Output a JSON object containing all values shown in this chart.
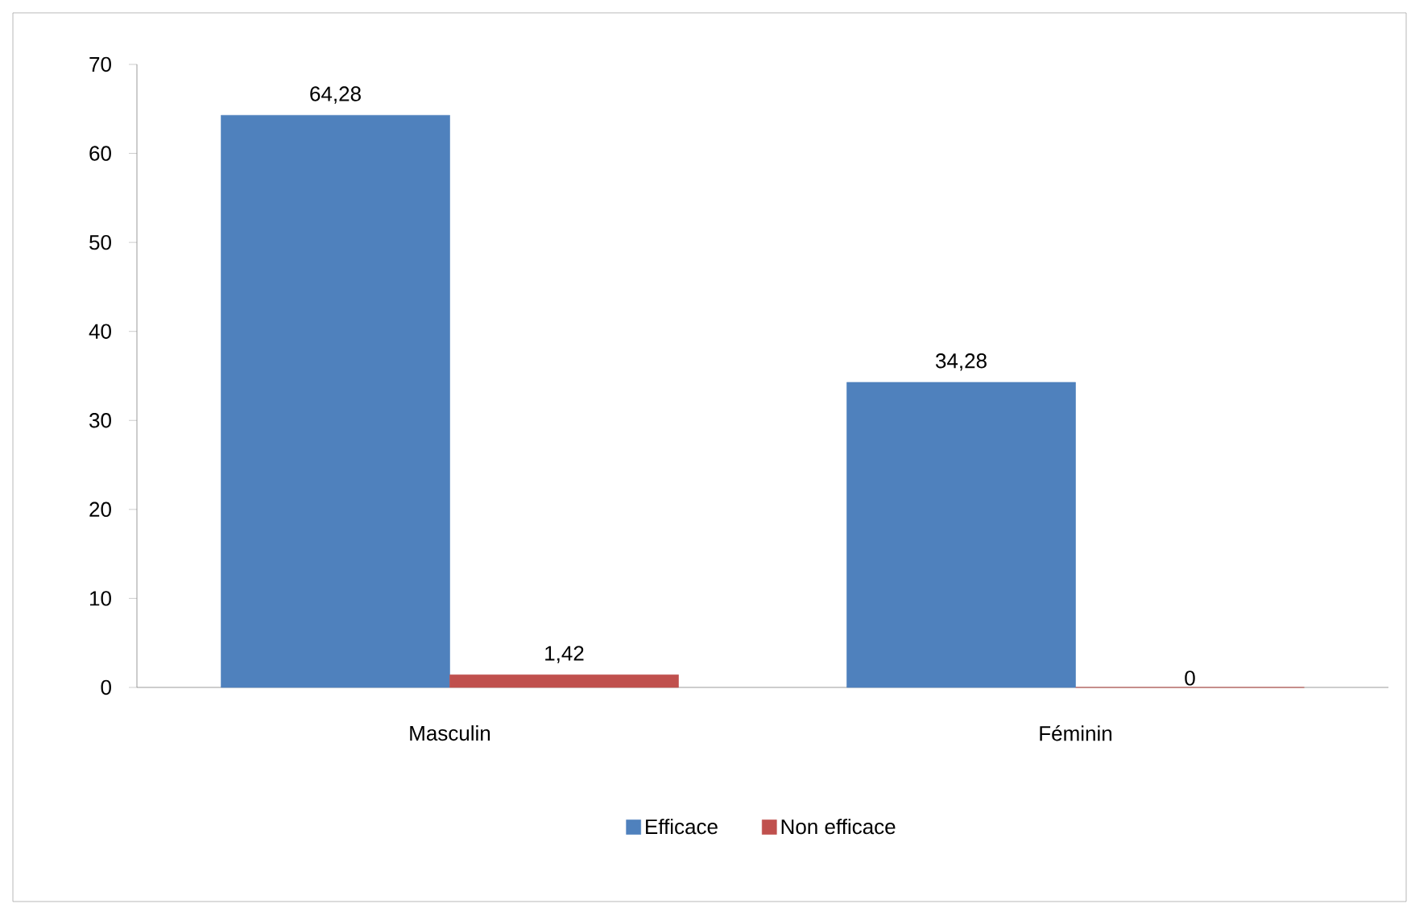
{
  "chart_data": {
    "type": "bar",
    "categories": [
      "Masculin",
      "Féminin"
    ],
    "series": [
      {
        "name": "Efficace",
        "color": "#4f81bd",
        "values": [
          64.28,
          34.28
        ],
        "value_labels": [
          "64,28",
          "34,28"
        ]
      },
      {
        "name": "Non efficace",
        "color": "#c0504d",
        "values": [
          1.42,
          0
        ],
        "value_labels": [
          "1,42",
          "0"
        ]
      }
    ],
    "ylim": [
      0,
      70
    ],
    "yticks": [
      0,
      10,
      20,
      30,
      40,
      50,
      60,
      70
    ],
    "legend": "bottom"
  }
}
